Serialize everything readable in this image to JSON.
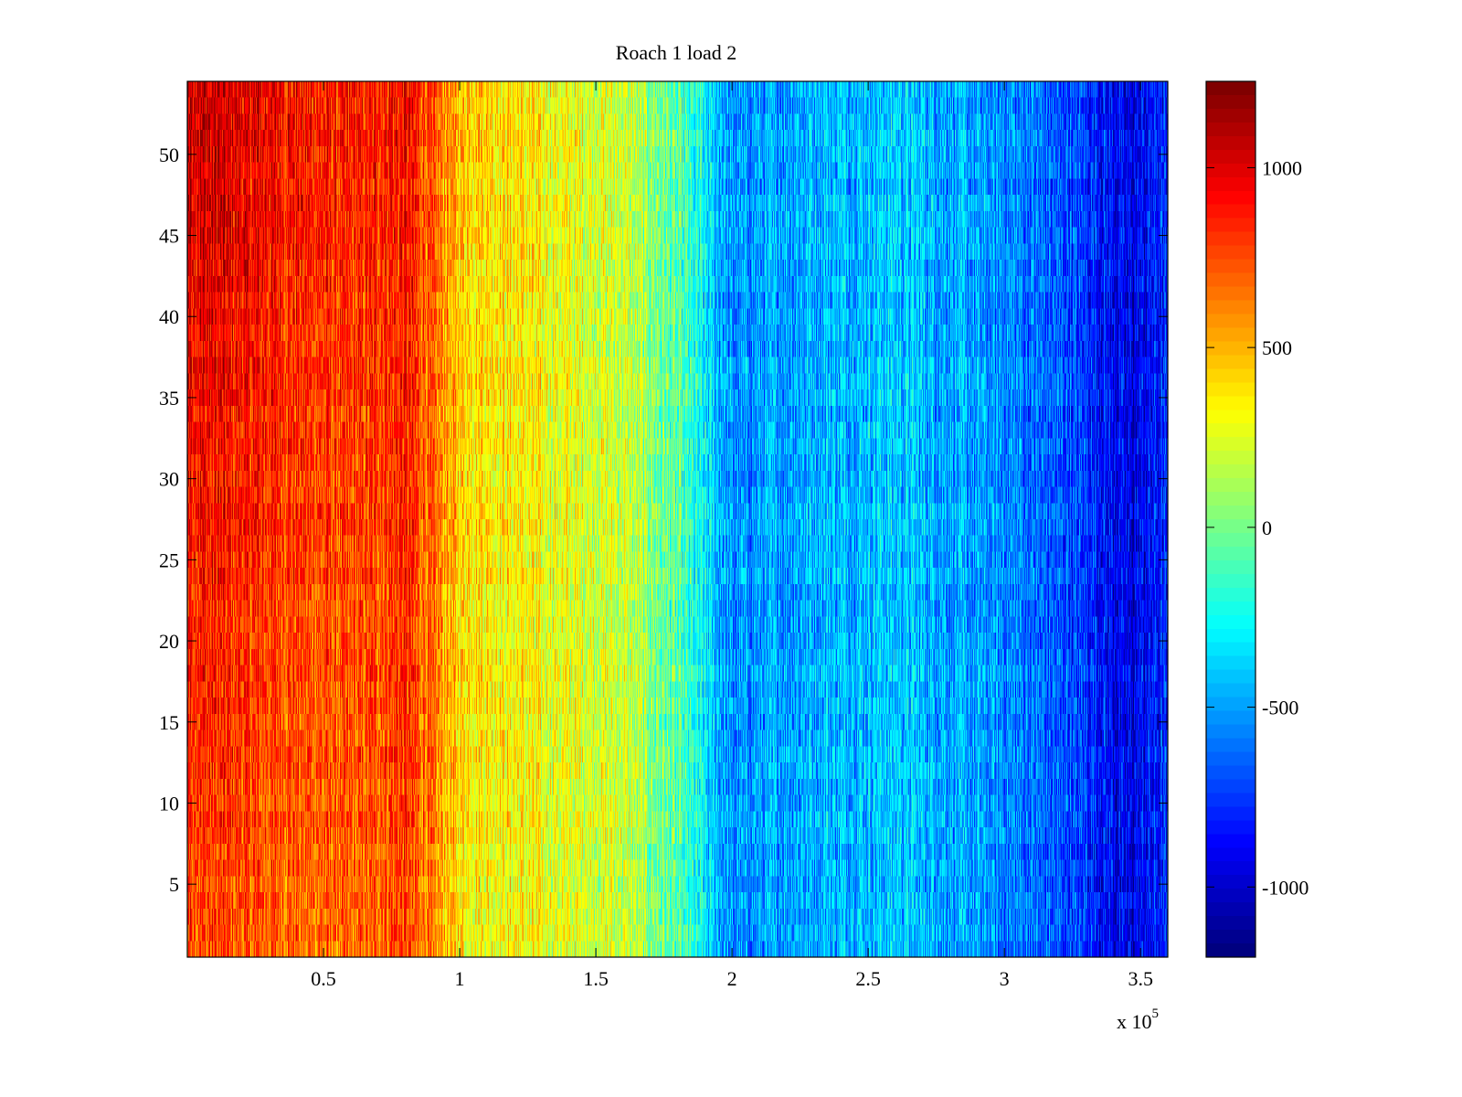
{
  "chart_data": {
    "type": "heatmap",
    "title": "Roach 1 load 2",
    "xlabel": "",
    "ylabel": "",
    "x_exponent_label": "x 10",
    "x_exponent": "5",
    "xlim": [
      0,
      360000
    ],
    "ylim": [
      0.5,
      54.5
    ],
    "rows": 54,
    "xticks": [
      50000,
      100000,
      150000,
      200000,
      250000,
      300000,
      350000
    ],
    "xtick_labels": [
      "0.5",
      "1",
      "1.5",
      "2",
      "2.5",
      "3",
      "3.5"
    ],
    "yticks": [
      5,
      10,
      15,
      20,
      25,
      30,
      35,
      40,
      45,
      50
    ],
    "ytick_labels": [
      "5",
      "10",
      "15",
      "20",
      "25",
      "30",
      "35",
      "40",
      "45",
      "50"
    ],
    "colormap": "jet",
    "clim": [
      -1195,
      1240
    ],
    "colorbar_ticks": [
      1000,
      500,
      0,
      -500,
      -1000
    ],
    "colorbar_tick_labels": [
      "1000",
      "500",
      "0",
      "-500",
      "-1000"
    ],
    "colorbar_location": "right",
    "column_mean_profile": {
      "x": [
        0,
        30000,
        60000,
        80000,
        100000,
        130000,
        160000,
        180000,
        200000,
        230000,
        260000,
        300000,
        330000,
        345000,
        360000
      ],
      "values": [
        950,
        850,
        750,
        850,
        450,
        300,
        200,
        -100,
        -550,
        -450,
        -400,
        -550,
        -750,
        -950,
        -800
      ]
    },
    "row_gradient_note_values": {
      "top_rows_offset": 120,
      "bottom_rows_offset": -180
    }
  }
}
